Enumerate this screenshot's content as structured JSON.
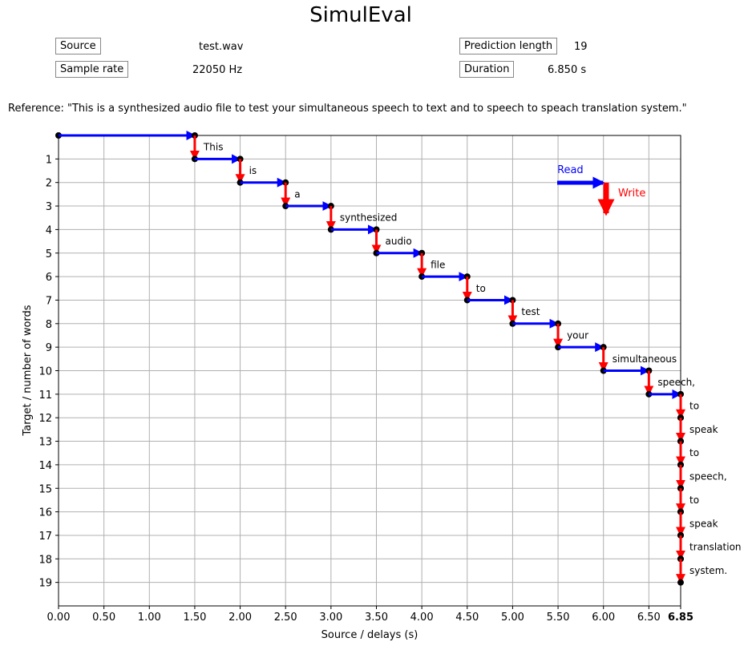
{
  "title": "SimulEval",
  "info": {
    "source_label": "Source",
    "source_value": "test.wav",
    "rate_label": "Sample rate",
    "rate_value": "22050 Hz",
    "pred_label": "Prediction length",
    "pred_value": "19",
    "dur_label": "Duration",
    "dur_value": "6.850 s"
  },
  "reference": "Reference: \"This is a synthesized audio file to test your simultaneous speech to text and to speech to speach translation system.\"",
  "chart_data": {
    "type": "line",
    "xlabel": "Source / delays (s)",
    "ylabel": "Target / number of words",
    "xlim": [
      0,
      6.85
    ],
    "ylim": [
      20,
      0
    ],
    "xticks": [
      "0.00",
      "0.50",
      "1.00",
      "1.50",
      "2.00",
      "2.50",
      "3.00",
      "3.50",
      "4.00",
      "4.50",
      "5.00",
      "5.50",
      "6.00",
      "6.50",
      "6.85"
    ],
    "xtick_values": [
      0,
      0.5,
      1,
      1.5,
      2,
      2.5,
      3,
      3.5,
      4,
      4.5,
      5,
      5.5,
      6,
      6.5,
      6.85
    ],
    "yticks": [
      1,
      2,
      3,
      4,
      5,
      6,
      7,
      8,
      9,
      10,
      11,
      12,
      13,
      14,
      15,
      16,
      17,
      18,
      19
    ],
    "grid": true,
    "words": [
      "This",
      "is",
      "a",
      "synthesized",
      "audio",
      "file",
      "to",
      "test",
      "your",
      "simultaneous",
      "speech,",
      "to",
      "speak",
      "to",
      "speech,",
      "to",
      "speak",
      "translation",
      "system."
    ],
    "delays": [
      1.5,
      2,
      2.5,
      3,
      3.5,
      4,
      4.5,
      5,
      5.5,
      6,
      6.5,
      6.85,
      6.85,
      6.85,
      6.85,
      6.85,
      6.85,
      6.85,
      6.85
    ],
    "legend": {
      "read": "Read",
      "write": "Write",
      "read_color": "#0000ff",
      "write_color": "#ff0000",
      "placement": "top-right"
    }
  }
}
